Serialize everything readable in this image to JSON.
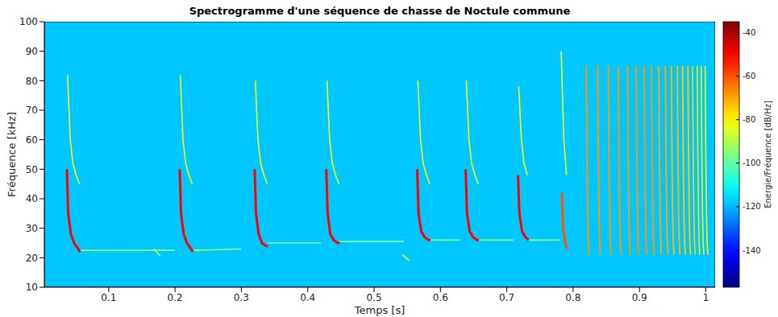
{
  "chart_data": {
    "type": "spectrogram",
    "title": "Spectrogramme d'une séquence de chasse de Noctule commune",
    "x_label": "Temps [s]",
    "y_label": "Fréquence [kHz]",
    "xlim": [
      0.003,
      1.014
    ],
    "xticks": [
      0.1,
      0.2,
      0.3,
      0.4,
      0.5,
      0.6,
      0.7,
      0.8,
      0.9,
      1
    ],
    "ylim": [
      10,
      100
    ],
    "yticks": [
      10,
      20,
      30,
      40,
      50,
      60,
      70,
      80,
      90,
      100
    ],
    "grid": false,
    "background_level": -118,
    "colorbar": {
      "label": "Energie/Fréquence [dB/Hz]",
      "range": [
        -157,
        -35
      ],
      "ticks": [
        -140,
        -120,
        -100,
        -80,
        -60,
        -40
      ]
    },
    "series": [
      {
        "level": -95,
        "points": [
          [
            0.057,
            22.5
          ],
          [
            0.2,
            22.5
          ]
        ]
      },
      {
        "level": -82,
        "points": [
          [
            0.038,
            82
          ],
          [
            0.042,
            60
          ],
          [
            0.046,
            52
          ],
          [
            0.051,
            48
          ],
          [
            0.056,
            45
          ]
        ]
      },
      {
        "level": -50,
        "points": [
          [
            0.037,
            50
          ],
          [
            0.039,
            35
          ],
          [
            0.043,
            28
          ],
          [
            0.048,
            25
          ],
          [
            0.054,
            23
          ],
          [
            0.057,
            22
          ]
        ]
      },
      {
        "level": -88,
        "points": [
          [
            0.168,
            23
          ],
          [
            0.178,
            20.5
          ]
        ]
      },
      {
        "level": -95,
        "points": [
          [
            0.227,
            22.5
          ],
          [
            0.3,
            23
          ]
        ]
      },
      {
        "level": -82,
        "points": [
          [
            0.208,
            82
          ],
          [
            0.212,
            60
          ],
          [
            0.216,
            52
          ],
          [
            0.221,
            48
          ],
          [
            0.226,
            45
          ]
        ]
      },
      {
        "level": -50,
        "points": [
          [
            0.207,
            50
          ],
          [
            0.209,
            35
          ],
          [
            0.213,
            28
          ],
          [
            0.218,
            25
          ],
          [
            0.224,
            23
          ],
          [
            0.227,
            22
          ]
        ]
      },
      {
        "level": -95,
        "points": [
          [
            0.34,
            25
          ],
          [
            0.42,
            25
          ]
        ]
      },
      {
        "level": -82,
        "points": [
          [
            0.321,
            80
          ],
          [
            0.325,
            60
          ],
          [
            0.329,
            52
          ],
          [
            0.334,
            48
          ],
          [
            0.339,
            45
          ]
        ]
      },
      {
        "level": -50,
        "points": [
          [
            0.32,
            50
          ],
          [
            0.322,
            35
          ],
          [
            0.326,
            28
          ],
          [
            0.331,
            25
          ],
          [
            0.337,
            24
          ],
          [
            0.34,
            24
          ]
        ]
      },
      {
        "level": -95,
        "points": [
          [
            0.448,
            25.5
          ],
          [
            0.545,
            25.5
          ]
        ]
      },
      {
        "level": -82,
        "points": [
          [
            0.429,
            80
          ],
          [
            0.433,
            60
          ],
          [
            0.437,
            52
          ],
          [
            0.442,
            48
          ],
          [
            0.447,
            45
          ]
        ]
      },
      {
        "level": -50,
        "points": [
          [
            0.428,
            50
          ],
          [
            0.43,
            35
          ],
          [
            0.434,
            28
          ],
          [
            0.439,
            26
          ],
          [
            0.445,
            25
          ],
          [
            0.448,
            25
          ]
        ]
      },
      {
        "level": -80,
        "points": [
          [
            0.543,
            21
          ],
          [
            0.553,
            19
          ]
        ]
      },
      {
        "level": -95,
        "points": [
          [
            0.585,
            26
          ],
          [
            0.63,
            26
          ]
        ]
      },
      {
        "level": -82,
        "points": [
          [
            0.566,
            80
          ],
          [
            0.57,
            60
          ],
          [
            0.574,
            52
          ],
          [
            0.579,
            48
          ],
          [
            0.584,
            45
          ]
        ]
      },
      {
        "level": -50,
        "points": [
          [
            0.565,
            50
          ],
          [
            0.567,
            35
          ],
          [
            0.571,
            29
          ],
          [
            0.576,
            27
          ],
          [
            0.582,
            26
          ],
          [
            0.585,
            26
          ]
        ]
      },
      {
        "level": -95,
        "points": [
          [
            0.658,
            26
          ],
          [
            0.71,
            26
          ]
        ]
      },
      {
        "level": -82,
        "points": [
          [
            0.639,
            80
          ],
          [
            0.643,
            60
          ],
          [
            0.647,
            52
          ],
          [
            0.652,
            48
          ],
          [
            0.657,
            45
          ]
        ]
      },
      {
        "level": -50,
        "points": [
          [
            0.638,
            50
          ],
          [
            0.64,
            35
          ],
          [
            0.644,
            29
          ],
          [
            0.649,
            27
          ],
          [
            0.655,
            26
          ],
          [
            0.658,
            26
          ]
        ]
      },
      {
        "level": -95,
        "points": [
          [
            0.733,
            26
          ],
          [
            0.78,
            26
          ]
        ]
      },
      {
        "level": -82,
        "points": [
          [
            0.718,
            78
          ],
          [
            0.722,
            60
          ],
          [
            0.726,
            52
          ],
          [
            0.731,
            48
          ]
        ]
      },
      {
        "level": -50,
        "points": [
          [
            0.717,
            48
          ],
          [
            0.719,
            35
          ],
          [
            0.723,
            29
          ],
          [
            0.728,
            27
          ],
          [
            0.733,
            26
          ]
        ]
      },
      {
        "level": -82,
        "points": [
          [
            0.782,
            90
          ],
          [
            0.786,
            60
          ],
          [
            0.79,
            48
          ]
        ]
      },
      {
        "level": -60,
        "points": [
          [
            0.783,
            42
          ],
          [
            0.785,
            30
          ],
          [
            0.788,
            25
          ],
          [
            0.791,
            23
          ]
        ]
      },
      {
        "level": -68,
        "points": [
          [
            0.82,
            85
          ],
          [
            0.821,
            55
          ],
          [
            0.822,
            35
          ],
          [
            0.823,
            25
          ],
          [
            0.824,
            21
          ]
        ]
      },
      {
        "level": -68,
        "points": [
          [
            0.837,
            85
          ],
          [
            0.838,
            55
          ],
          [
            0.839,
            35
          ],
          [
            0.84,
            25
          ],
          [
            0.841,
            21
          ]
        ]
      },
      {
        "level": -68,
        "points": [
          [
            0.853,
            85
          ],
          [
            0.854,
            55
          ],
          [
            0.855,
            35
          ],
          [
            0.856,
            25
          ],
          [
            0.857,
            21
          ]
        ]
      },
      {
        "level": -68,
        "points": [
          [
            0.868,
            85
          ],
          [
            0.869,
            55
          ],
          [
            0.87,
            35
          ],
          [
            0.871,
            25
          ],
          [
            0.872,
            21
          ]
        ]
      },
      {
        "level": -68,
        "points": [
          [
            0.882,
            85
          ],
          [
            0.883,
            55
          ],
          [
            0.884,
            35
          ],
          [
            0.885,
            25
          ],
          [
            0.886,
            21
          ]
        ]
      },
      {
        "level": -68,
        "points": [
          [
            0.895,
            85
          ],
          [
            0.896,
            55
          ],
          [
            0.897,
            35
          ],
          [
            0.898,
            25
          ],
          [
            0.899,
            21
          ]
        ]
      },
      {
        "level": -68,
        "points": [
          [
            0.907,
            85
          ],
          [
            0.908,
            55
          ],
          [
            0.909,
            35
          ],
          [
            0.91,
            25
          ],
          [
            0.911,
            21
          ]
        ]
      },
      {
        "level": -68,
        "points": [
          [
            0.918,
            85
          ],
          [
            0.919,
            55
          ],
          [
            0.92,
            35
          ],
          [
            0.921,
            25
          ],
          [
            0.922,
            21
          ]
        ]
      },
      {
        "level": -70,
        "points": [
          [
            0.929,
            85
          ],
          [
            0.93,
            55
          ],
          [
            0.931,
            35
          ],
          [
            0.932,
            25
          ],
          [
            0.933,
            21
          ]
        ]
      },
      {
        "level": -70,
        "points": [
          [
            0.939,
            85
          ],
          [
            0.94,
            55
          ],
          [
            0.941,
            35
          ],
          [
            0.942,
            25
          ],
          [
            0.943,
            21
          ]
        ]
      },
      {
        "level": -72,
        "points": [
          [
            0.948,
            85
          ],
          [
            0.949,
            55
          ],
          [
            0.95,
            35
          ],
          [
            0.951,
            25
          ],
          [
            0.952,
            21
          ]
        ]
      },
      {
        "level": -72,
        "points": [
          [
            0.957,
            85
          ],
          [
            0.958,
            55
          ],
          [
            0.959,
            35
          ],
          [
            0.96,
            25
          ],
          [
            0.961,
            21
          ]
        ]
      },
      {
        "level": -74,
        "points": [
          [
            0.965,
            85
          ],
          [
            0.966,
            55
          ],
          [
            0.967,
            35
          ],
          [
            0.968,
            25
          ],
          [
            0.969,
            21
          ]
        ]
      },
      {
        "level": -74,
        "points": [
          [
            0.973,
            85
          ],
          [
            0.974,
            55
          ],
          [
            0.975,
            35
          ],
          [
            0.976,
            25
          ],
          [
            0.977,
            21
          ]
        ]
      },
      {
        "level": -76,
        "points": [
          [
            0.98,
            85
          ],
          [
            0.981,
            55
          ],
          [
            0.982,
            35
          ],
          [
            0.983,
            25
          ],
          [
            0.984,
            21
          ]
        ]
      },
      {
        "level": -78,
        "points": [
          [
            0.987,
            85
          ],
          [
            0.988,
            55
          ],
          [
            0.989,
            35
          ],
          [
            0.99,
            25
          ],
          [
            0.991,
            21
          ]
        ]
      },
      {
        "level": -80,
        "points": [
          [
            0.993,
            85
          ],
          [
            0.994,
            55
          ],
          [
            0.995,
            35
          ],
          [
            0.996,
            25
          ],
          [
            0.997,
            21
          ]
        ]
      },
      {
        "level": -82,
        "points": [
          [
            0.999,
            85
          ],
          [
            1.0,
            55
          ],
          [
            1.001,
            35
          ],
          [
            1.002,
            25
          ],
          [
            1.003,
            21
          ]
        ]
      }
    ]
  }
}
